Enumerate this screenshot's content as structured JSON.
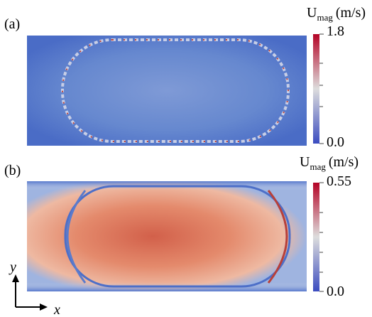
{
  "panels": [
    {
      "label": "(a)",
      "colorbar": {
        "symbol": "U",
        "subscript": "mag",
        "unit": "(m/s)",
        "max": "1.8",
        "min": "0.0"
      }
    },
    {
      "label": "(b)",
      "colorbar": {
        "symbol": "U",
        "subscript": "mag",
        "unit": "(m/s)",
        "max": "0.55",
        "min": "0.0"
      }
    }
  ],
  "axes": {
    "x": "x",
    "y": "y"
  }
}
